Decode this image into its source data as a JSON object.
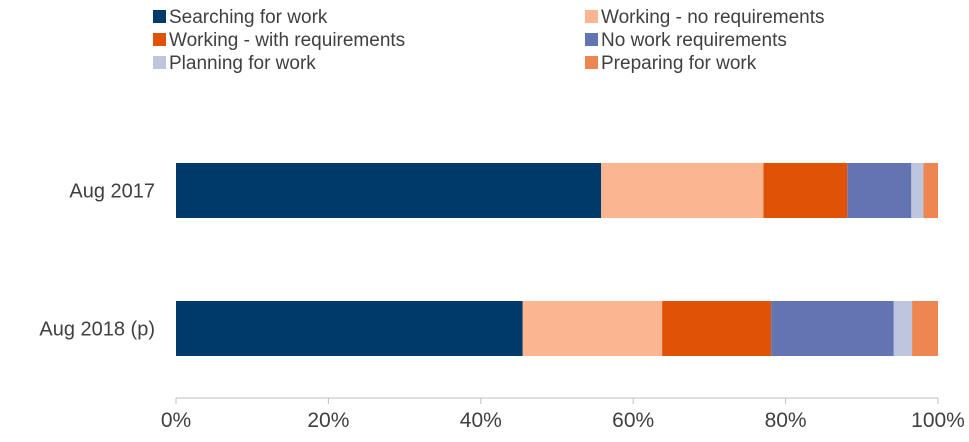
{
  "chart_data": {
    "type": "bar",
    "orientation": "horizontal",
    "stacked": true,
    "percent_stacked": true,
    "categories": [
      "Aug 2017",
      "Aug 2018 (p)"
    ],
    "series": [
      {
        "name": "Searching for work",
        "color": "#003A6A",
        "values": [
          55.8,
          45.5
        ]
      },
      {
        "name": "Working - no requirements",
        "color": "#FBB691",
        "values": [
          21.3,
          18.3
        ]
      },
      {
        "name": "Working - with requirements",
        "color": "#E05206",
        "values": [
          11.0,
          14.3
        ]
      },
      {
        "name": "No work requirements",
        "color": "#6275B2",
        "values": [
          8.4,
          16.1
        ]
      },
      {
        "name": "Planning for work",
        "color": "#BDC6DC",
        "values": [
          1.6,
          2.4
        ]
      },
      {
        "name": "Preparing for work",
        "color": "#EE8652",
        "values": [
          1.9,
          3.4
        ]
      }
    ],
    "xlim": [
      0,
      100
    ],
    "xticks": [
      "0%",
      "20%",
      "40%",
      "60%",
      "80%",
      "100%"
    ],
    "grid": false,
    "legend_position": "top"
  }
}
